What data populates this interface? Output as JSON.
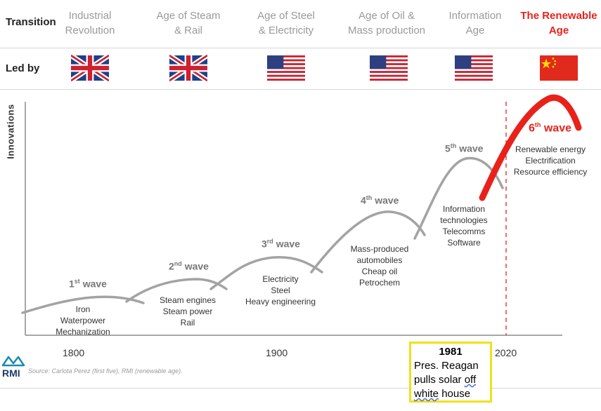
{
  "header": {
    "transition_label": "Transition",
    "led_by_label": "Led by",
    "eras": [
      {
        "line1": "Industrial",
        "line2": "Revolution",
        "flag": "uk-flag"
      },
      {
        "line1": "Age of Steam",
        "line2": "& Rail",
        "flag": "uk-flag"
      },
      {
        "line1": "Age of Steel",
        "line2": "& Electricity",
        "flag": "us-flag"
      },
      {
        "line1": "Age of Oil &",
        "line2": "Mass production",
        "flag": "us-flag"
      },
      {
        "line1": "Information",
        "line2": "Age",
        "flag": "us-flag"
      },
      {
        "line1": "The Renewable",
        "line2": "Age",
        "flag": "china-flag",
        "highlight": true
      }
    ]
  },
  "chart": {
    "ylabel": "Innovations",
    "waves": [
      {
        "num": "1",
        "sup": "st",
        "word": "wave",
        "items": [
          "Iron",
          "Waterpower",
          "Mechanization"
        ]
      },
      {
        "num": "2",
        "sup": "nd",
        "word": "wave",
        "items": [
          "Steam engines",
          "Steam power",
          "Rail"
        ]
      },
      {
        "num": "3",
        "sup": "rd",
        "word": "wave",
        "items": [
          "Electricity",
          "Steel",
          "Heavy engineering"
        ]
      },
      {
        "num": "4",
        "sup": "th",
        "word": "wave",
        "items": [
          "Mass-produced",
          "automobiles",
          "Cheap oil",
          "Petrochem"
        ]
      },
      {
        "num": "5",
        "sup": "th",
        "word": "wave",
        "items": [
          "Information",
          "technologies",
          "Telecomms",
          "Software"
        ]
      },
      {
        "num": "6",
        "sup": "th",
        "word": "wave",
        "items": [
          "Renewable energy",
          "Electrification",
          "Resource efficiency"
        ]
      }
    ],
    "years": [
      "1800",
      "1900",
      "2020"
    ],
    "source": "Source: Carlota Perez (first five), RMI (renewable age).",
    "logo_text": "RMI"
  },
  "callout": {
    "year": "1981",
    "line1": "Pres. Reagan",
    "line2a": "pulls solar ",
    "line2b": "off",
    "line3a": "white",
    "line3b": " house"
  },
  "colors": {
    "accent_red": "#e8221b",
    "wave_gray": "#a3a3a3",
    "callout_border": "#f2e01b"
  }
}
